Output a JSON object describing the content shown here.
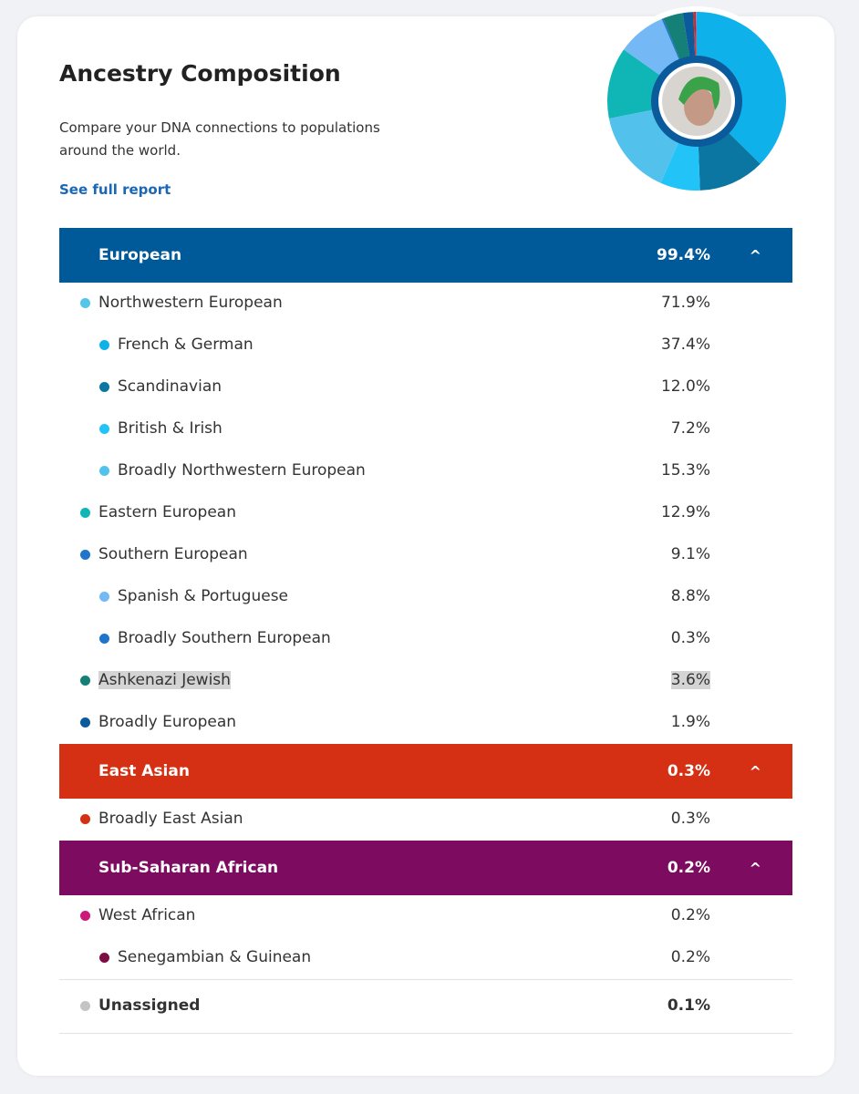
{
  "header": {
    "title": "Ancestry Composition",
    "description": "Compare your DNA connections to populations around the world.",
    "link": "See full report"
  },
  "groups": [
    {
      "label": "European",
      "percent": "99.4%",
      "color": "#005a9a",
      "expanded": true,
      "items": [
        {
          "label": "Northwestern European",
          "percent": "71.9%",
          "level": 1,
          "color": "#56c5ea"
        },
        {
          "label": "French & German",
          "percent": "37.4%",
          "level": 2,
          "color": "#0eb1ea"
        },
        {
          "label": "Scandinavian",
          "percent": "12.0%",
          "level": 2,
          "color": "#0a76a1"
        },
        {
          "label": "British & Irish",
          "percent": "7.2%",
          "level": 2,
          "color": "#22c4f7"
        },
        {
          "label": "Broadly Northwestern European",
          "percent": "15.3%",
          "level": 2,
          "color": "#52c2ec"
        },
        {
          "label": "Eastern European",
          "percent": "12.9%",
          "level": 1,
          "color": "#10b6b6"
        },
        {
          "label": "Southern European",
          "percent": "9.1%",
          "level": 1,
          "color": "#1f74cc"
        },
        {
          "label": "Spanish & Portuguese",
          "percent": "8.8%",
          "level": 2,
          "color": "#74b8f5"
        },
        {
          "label": "Broadly Southern European",
          "percent": "0.3%",
          "level": 2,
          "color": "#1f74cc"
        },
        {
          "label": "Ashkenazi Jewish",
          "percent": "3.6%",
          "level": 1,
          "color": "#158078",
          "highlighted": true
        },
        {
          "label": "Broadly European",
          "percent": "1.9%",
          "level": 1,
          "color": "#0b5a9c"
        }
      ]
    },
    {
      "label": "East Asian",
      "percent": "0.3%",
      "color": "#d63014",
      "expanded": true,
      "items": [
        {
          "label": "Broadly East Asian",
          "percent": "0.3%",
          "level": 1,
          "color": "#d63014"
        }
      ]
    },
    {
      "label": "Sub-Saharan African",
      "percent": "0.2%",
      "color": "#7d0c61",
      "expanded": true,
      "items": [
        {
          "label": "West African",
          "percent": "0.2%",
          "level": 1,
          "color": "#cc1a7a"
        },
        {
          "label": "Senegambian & Guinean",
          "percent": "0.2%",
          "level": 2,
          "color": "#7d0c45"
        }
      ]
    }
  ],
  "unassigned": {
    "label": "Unassigned",
    "percent": "0.1%",
    "color": "#c4c4c4"
  },
  "chevron_icon": "chevron-up-icon",
  "donut_segments": [
    {
      "value": 37.4,
      "color": "#0eb1ea"
    },
    {
      "value": 12.0,
      "color": "#0a76a1"
    },
    {
      "value": 7.2,
      "color": "#22c4f7"
    },
    {
      "value": 15.3,
      "color": "#52c2ec"
    },
    {
      "value": 12.9,
      "color": "#10b6b6"
    },
    {
      "value": 8.8,
      "color": "#74b8f5"
    },
    {
      "value": 0.3,
      "color": "#1f74cc"
    },
    {
      "value": 3.6,
      "color": "#158078"
    },
    {
      "value": 1.9,
      "color": "#0b5a9c"
    },
    {
      "value": 0.3,
      "color": "#d63014"
    },
    {
      "value": 0.2,
      "color": "#7d0c61"
    },
    {
      "value": 0.1,
      "color": "#c4c4c4"
    }
  ]
}
